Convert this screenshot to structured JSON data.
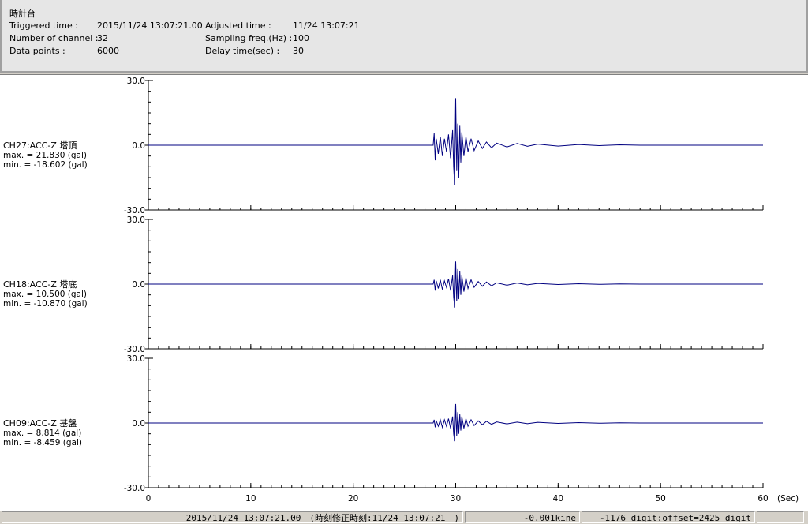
{
  "header": {
    "title": "時計台",
    "fields": [
      {
        "label": "Triggered time :",
        "value": "2015/11/24 13:07:21.00"
      },
      {
        "label": "Adjusted time :",
        "value": "11/24 13:07:21"
      },
      {
        "label": "Number of channel :",
        "value": "32"
      },
      {
        "label": "Sampling freq.(Hz) :",
        "value": "100"
      },
      {
        "label": "Data points :",
        "value": "6000"
      },
      {
        "label": "Delay time(sec) :",
        "value": "30"
      }
    ]
  },
  "chart_data": [
    {
      "type": "line",
      "title": "CH27:ACC-Z 塔頂",
      "annotations": [
        "max. = 21.830 (gal)",
        "min. = -18.602 (gal)"
      ],
      "color": "#000080",
      "xlim": [
        0,
        60
      ],
      "ylim": [
        -30,
        30
      ],
      "yticks": [
        {
          "value": 30,
          "label": "30.0"
        },
        {
          "value": 0,
          "label": "0.0"
        },
        {
          "value": -30,
          "label": "-30.0"
        }
      ],
      "x": [
        0,
        27.8,
        27.9,
        28.0,
        28.1,
        28.3,
        28.5,
        28.7,
        28.9,
        29.1,
        29.3,
        29.5,
        29.7,
        29.8,
        29.9,
        30.0,
        30.1,
        30.2,
        30.3,
        30.4,
        30.5,
        30.6,
        30.8,
        31.0,
        31.2,
        31.5,
        31.8,
        32.2,
        32.6,
        33.0,
        33.5,
        34.0,
        35,
        36,
        37,
        38,
        40,
        42,
        44,
        46,
        48,
        60
      ],
      "values": [
        0,
        0,
        5.5,
        -7,
        3,
        -4,
        4,
        -5,
        3,
        -3,
        5,
        -6,
        7,
        -10,
        -18.602,
        21.83,
        -12,
        10,
        -15,
        9,
        -8,
        6,
        -5,
        4,
        -3,
        3,
        -2.5,
        2,
        -1.5,
        1.5,
        -1.2,
        1,
        -0.8,
        0.8,
        -0.5,
        0.5,
        -0.4,
        0.3,
        -0.2,
        0.2,
        0,
        0
      ]
    },
    {
      "type": "line",
      "title": "CH18:ACC-Z 塔底",
      "annotations": [
        "max. = 10.500 (gal)",
        "min. = -10.870 (gal)"
      ],
      "color": "#000080",
      "xlim": [
        0,
        60
      ],
      "ylim": [
        -30,
        30
      ],
      "yticks": [
        {
          "value": 30,
          "label": "30.0"
        },
        {
          "value": 0,
          "label": "0.0"
        },
        {
          "value": -30,
          "label": "-30.0"
        }
      ],
      "x": [
        0,
        27.8,
        27.9,
        28.0,
        28.1,
        28.3,
        28.5,
        28.7,
        28.9,
        29.1,
        29.3,
        29.5,
        29.7,
        29.8,
        29.9,
        30.0,
        30.1,
        30.2,
        30.3,
        30.4,
        30.5,
        30.6,
        30.8,
        31.0,
        31.2,
        31.5,
        31.8,
        32.2,
        32.6,
        33.0,
        33.5,
        34.0,
        35,
        36,
        37,
        38,
        40,
        42,
        44,
        46,
        48,
        60
      ],
      "values": [
        0,
        0,
        2,
        -3,
        1.5,
        -2,
        2,
        -2.5,
        1.5,
        -1.5,
        2.5,
        -3,
        4,
        -6,
        -10.87,
        10.5,
        -8,
        7,
        -7,
        6,
        -5,
        4,
        -3.5,
        3,
        -2,
        2,
        -1.5,
        1.2,
        -1,
        1,
        -0.8,
        0.6,
        -0.5,
        0.5,
        -0.3,
        0.3,
        -0.2,
        0.2,
        -0.1,
        0.1,
        0,
        0
      ]
    },
    {
      "type": "line",
      "title": "CH09:ACC-Z 基盤",
      "annotations": [
        "max. = 8.814 (gal)",
        "min. = -8.459 (gal)"
      ],
      "color": "#000080",
      "xlim": [
        0,
        60
      ],
      "ylim": [
        -30,
        30
      ],
      "yticks": [
        {
          "value": 30,
          "label": "30.0"
        },
        {
          "value": 0,
          "label": "0.0"
        },
        {
          "value": -30,
          "label": "-30.0"
        }
      ],
      "xticks": [
        0,
        10,
        20,
        30,
        40,
        50,
        60
      ],
      "xlabel": "(Sec)",
      "x": [
        0,
        27.8,
        27.9,
        28.0,
        28.1,
        28.3,
        28.5,
        28.7,
        28.9,
        29.1,
        29.3,
        29.5,
        29.7,
        29.8,
        29.9,
        30.0,
        30.1,
        30.2,
        30.3,
        30.4,
        30.5,
        30.6,
        30.8,
        31.0,
        31.2,
        31.5,
        31.8,
        32.2,
        32.6,
        33.0,
        33.5,
        34.0,
        35,
        36,
        37,
        38,
        40,
        42,
        44,
        46,
        48,
        60
      ],
      "values": [
        0,
        0,
        1.5,
        -2,
        1,
        -1.5,
        1.5,
        -2,
        1.5,
        -1.5,
        2,
        -2.5,
        3,
        -5,
        -8.459,
        8.814,
        -6,
        5,
        -5,
        4,
        -3.5,
        3,
        -2.5,
        2,
        -1.5,
        1.5,
        -1.2,
        1,
        -0.8,
        0.8,
        -0.6,
        0.5,
        -0.4,
        0.4,
        -0.3,
        0.3,
        -0.2,
        0.2,
        -0.1,
        0.1,
        0,
        0
      ]
    }
  ],
  "status": [
    "2015/11/24 13:07:21.00　(時刻修正時刻:11/24 13:07:21　)",
    "-0.001kine",
    "-1176 digit:offset=2425 digit"
  ]
}
